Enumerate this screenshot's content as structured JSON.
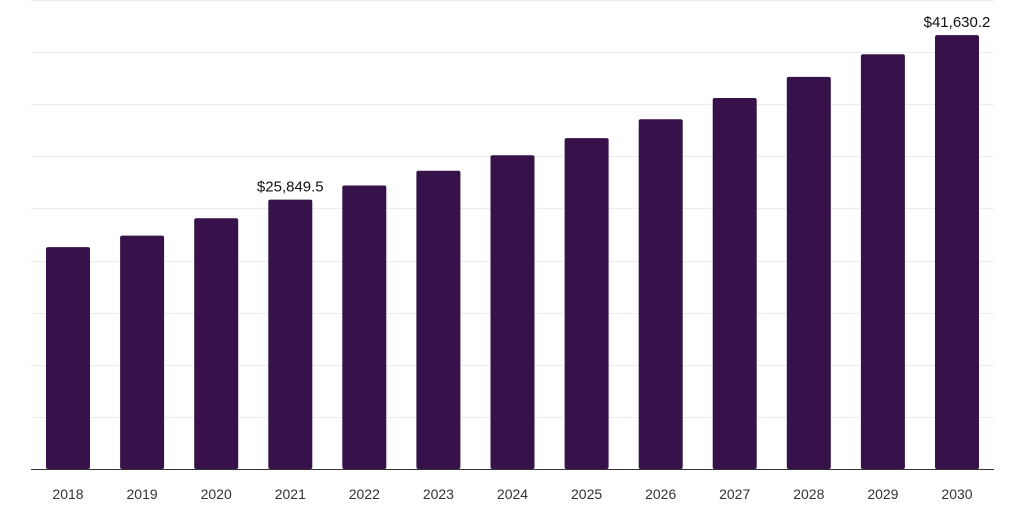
{
  "chart_data": {
    "type": "bar",
    "title": "",
    "xlabel": "",
    "ylabel": "",
    "categories": [
      "2018",
      "2019",
      "2020",
      "2021",
      "2022",
      "2023",
      "2024",
      "2025",
      "2026",
      "2027",
      "2028",
      "2029",
      "2030"
    ],
    "values": [
      21290,
      22390,
      24050,
      25849.5,
      27200,
      28620,
      30100,
      31750,
      33550,
      35600,
      37620,
      39800,
      41630.2
    ],
    "data_labels": [
      {
        "index": 3,
        "text": "$25,849.5"
      },
      {
        "index": 12,
        "text": "$41,630.2"
      }
    ],
    "ylim": [
      0,
      45000
    ],
    "grid": true,
    "legend": "none",
    "bar_color": "#36114a",
    "grid_color": "#ececec",
    "axis_color": "#333333"
  }
}
